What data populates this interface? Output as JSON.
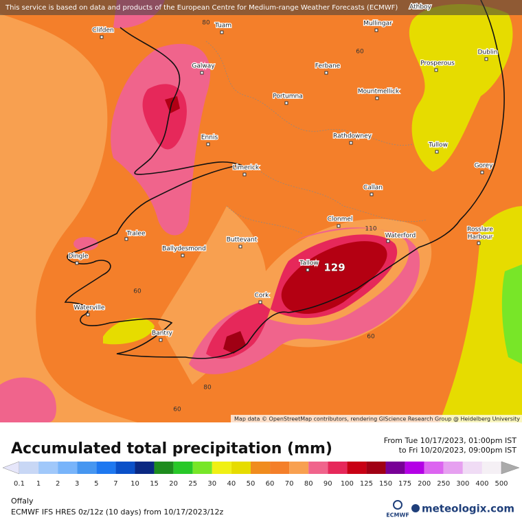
{
  "map": {
    "banner": "This service is based on data and products of the European Centre for Medium-range Weather Forecasts (ECMWF)",
    "attribution": "Map data © OpenStreetMap contributors, rendering GIScience Research Group @ Heidelberg University",
    "cities": [
      "Clifden",
      "Tuam",
      "Athboy",
      "Mullingar",
      "Dublin",
      "Galway",
      "Ferbane",
      "Prosperous",
      "Portumna",
      "Mountmellick",
      "Ennis",
      "Rathdowney",
      "Tullow",
      "Limerick",
      "Gorey",
      "Callan",
      "Clonmel",
      "Tralee",
      "Waterford",
      "Ballydesmond",
      "Buttevant",
      "Dingle",
      "Tallow",
      "Cork",
      "Waterville",
      "Bantry"
    ],
    "rosslare_harbour": [
      "Rosslare",
      "Harbour"
    ],
    "contour_labels": [
      "60",
      "60",
      "60",
      "60",
      "80",
      "80",
      "110"
    ],
    "max_label": "129"
  },
  "panel": {
    "title": "Accumulated total precipitation (mm)",
    "period": [
      "From Tue 10/17/2023, 01:00pm IST",
      "to Fri 10/20/2023, 09:00pm IST"
    ],
    "legend": {
      "labels": [
        "0.1",
        "1",
        "2",
        "3",
        "5",
        "7",
        "10",
        "15",
        "20",
        "25",
        "30",
        "40",
        "50",
        "60",
        "70",
        "80",
        "90",
        "100",
        "125",
        "150",
        "175",
        "200",
        "250",
        "300",
        "400",
        "500"
      ],
      "colors": [
        "#e6e6fa",
        "#c8d7f5",
        "#a0c8fa",
        "#78b4fa",
        "#4696f0",
        "#1e78f0",
        "#0a50c8",
        "#0a2882",
        "#1e8c1e",
        "#28c828",
        "#78e628",
        "#f0f014",
        "#e6dc00",
        "#f08c1e",
        "#f47f2a",
        "#f8a050",
        "#f0648c",
        "#e6285a",
        "#c80014",
        "#a00014",
        "#780096",
        "#b400e6",
        "#dc64f0",
        "#e6a0f0",
        "#f0dcf5",
        "#f5f0f5",
        "#aaaaaa"
      ]
    },
    "location": "Offaly",
    "model": "ECMWF IFS HRES 0z/12z (10 days) from 10/17/2023/12z",
    "ecmwf": "ECMWF",
    "brand": "meteologix.com"
  }
}
